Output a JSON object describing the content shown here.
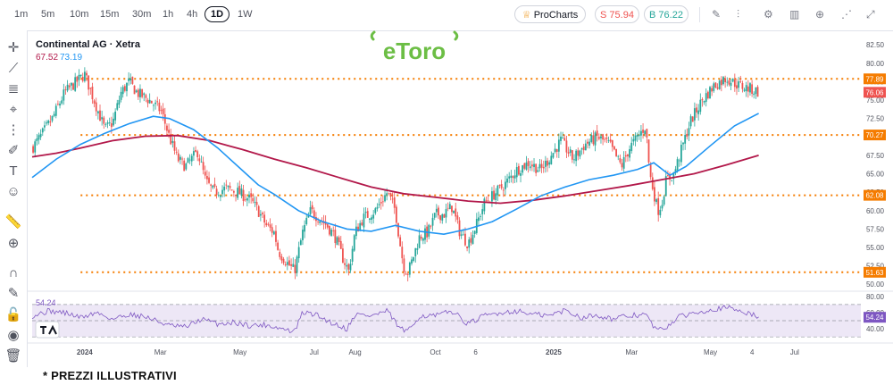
{
  "timeframes": [
    "1m",
    "5m",
    "10m",
    "15m",
    "30m",
    "1h",
    "4h",
    "1D",
    "1W"
  ],
  "active_timeframe": "1D",
  "procharts_label": "ProCharts",
  "sell_label": "S 75.94",
  "buy_label": "B 76.22",
  "toolbar_icons": [
    "pencil-icon",
    "indicators-icon",
    "settings-icon",
    "bars-icon",
    "add-icon",
    "share-icon",
    "fullscreen-icon"
  ],
  "left_tools": [
    "crosshair-icon",
    "trendline-icon",
    "fib-icon",
    "pattern-icon",
    "measure-icon",
    "brush-icon",
    "text-icon",
    "emoji-icon",
    "ruler-icon",
    "zoom-icon",
    "magnet-icon",
    "lock-draw-icon",
    "lock-icon",
    "eye-icon",
    "trash-icon"
  ],
  "brand_logo": "eToro",
  "colors": {
    "up": "#26a69a",
    "down": "#ef5350",
    "sma_short": "#2196f3",
    "sma_long": "#b2184a",
    "level": "#f57c00",
    "rsi": "#7e57c2",
    "brand": "#6cbe45"
  },
  "footer_note": "* PREZZI ILLUSTRATIVI",
  "chart_data": [
    {
      "type": "candlestick",
      "title": "Continental AG · Xetra",
      "legend_values": [
        "67.52",
        "73.19"
      ],
      "legend_colors": [
        "#b2184a",
        "#2196f3"
      ],
      "xticks": [
        {
          "label": "2024",
          "t": 0.068,
          "bold": true
        },
        {
          "label": "Mar",
          "t": 0.166
        },
        {
          "label": "May",
          "t": 0.269
        },
        {
          "label": "Jul",
          "t": 0.365
        },
        {
          "label": "Aug",
          "t": 0.418
        },
        {
          "label": "Oct",
          "t": 0.522
        },
        {
          "label": "6",
          "t": 0.574
        },
        {
          "label": "2025",
          "t": 0.675,
          "bold": true
        },
        {
          "label": "Mar",
          "t": 0.776
        },
        {
          "label": "May",
          "t": 0.878
        },
        {
          "label": "4",
          "t": 0.932
        },
        {
          "label": "Jul",
          "t": 0.987
        }
      ],
      "yticks": [
        50,
        52.5,
        55,
        57.5,
        60,
        62.5,
        65,
        67.5,
        70,
        72.5,
        75,
        77.5,
        80,
        82.5
      ],
      "ylim": [
        49.3,
        83.5
      ],
      "x_end": 1.045,
      "price_levels": [
        {
          "value": 77.89,
          "label": "77.89",
          "color": "#f57c00"
        },
        {
          "value": 70.27,
          "label": "70.27",
          "color": "#f57c00"
        },
        {
          "value": 62.08,
          "label": "62.08",
          "color": "#f57c00"
        },
        {
          "value": 51.63,
          "label": "51.63",
          "color": "#f57c00"
        }
      ],
      "last_price": {
        "value": 76.06,
        "label": "76.06",
        "color": "#ef5350"
      },
      "close_path": [
        [
          0,
          68.5
        ],
        [
          0.01,
          70
        ],
        [
          0.025,
          72.5
        ],
        [
          0.04,
          76
        ],
        [
          0.055,
          77.5
        ],
        [
          0.065,
          78.5
        ],
        [
          0.08,
          74
        ],
        [
          0.09,
          71
        ],
        [
          0.1,
          72
        ],
        [
          0.11,
          76
        ],
        [
          0.12,
          77.5
        ],
        [
          0.13,
          76
        ],
        [
          0.145,
          75
        ],
        [
          0.16,
          73.5
        ],
        [
          0.17,
          70
        ],
        [
          0.18,
          67
        ],
        [
          0.19,
          66
        ],
        [
          0.205,
          68
        ],
        [
          0.215,
          64
        ],
        [
          0.225,
          62.5
        ],
        [
          0.24,
          63
        ],
        [
          0.255,
          62.5
        ],
        [
          0.27,
          61.5
        ],
        [
          0.28,
          60
        ],
        [
          0.29,
          58
        ],
        [
          0.3,
          57
        ],
        [
          0.305,
          54.5
        ],
        [
          0.315,
          53
        ],
        [
          0.325,
          51.8
        ],
        [
          0.335,
          57
        ],
        [
          0.345,
          60
        ],
        [
          0.355,
          59
        ],
        [
          0.365,
          58
        ],
        [
          0.375,
          56.5
        ],
        [
          0.385,
          53.5
        ],
        [
          0.392,
          51.8
        ],
        [
          0.4,
          57
        ],
        [
          0.41,
          59
        ],
        [
          0.425,
          60
        ],
        [
          0.44,
          62.5
        ],
        [
          0.45,
          60
        ],
        [
          0.455,
          56
        ],
        [
          0.46,
          52.5
        ],
        [
          0.465,
          51.5
        ],
        [
          0.47,
          53
        ],
        [
          0.48,
          56.5
        ],
        [
          0.49,
          57
        ],
        [
          0.5,
          59.5
        ],
        [
          0.51,
          59.5
        ],
        [
          0.52,
          60.5
        ],
        [
          0.53,
          57
        ],
        [
          0.54,
          55.5
        ],
        [
          0.55,
          58
        ],
        [
          0.56,
          61
        ],
        [
          0.57,
          62
        ],
        [
          0.585,
          63.5
        ],
        [
          0.6,
          65.5
        ],
        [
          0.615,
          66.5
        ],
        [
          0.63,
          65.5
        ],
        [
          0.64,
          67
        ],
        [
          0.655,
          69.5
        ],
        [
          0.67,
          67
        ],
        [
          0.685,
          69
        ],
        [
          0.7,
          70
        ],
        [
          0.715,
          69
        ],
        [
          0.73,
          66
        ],
        [
          0.74,
          68.5
        ],
        [
          0.75,
          70
        ],
        [
          0.76,
          71.5
        ],
        [
          0.765,
          65
        ],
        [
          0.77,
          62.5
        ],
        [
          0.775,
          60
        ],
        [
          0.78,
          61
        ],
        [
          0.785,
          64
        ],
        [
          0.795,
          65
        ],
        [
          0.805,
          68.5
        ],
        [
          0.815,
          72
        ],
        [
          0.83,
          75
        ],
        [
          0.845,
          77
        ],
        [
          0.86,
          78
        ],
        [
          0.875,
          77
        ],
        [
          0.89,
          76.5
        ],
        [
          0.9,
          76.1
        ]
      ],
      "sma_short_path": [
        [
          0,
          64.5
        ],
        [
          0.03,
          67
        ],
        [
          0.06,
          69
        ],
        [
          0.09,
          70.5
        ],
        [
          0.12,
          71.8
        ],
        [
          0.15,
          72.8
        ],
        [
          0.17,
          72.5
        ],
        [
          0.2,
          71
        ],
        [
          0.23,
          68.5
        ],
        [
          0.26,
          65.5
        ],
        [
          0.28,
          63.5
        ],
        [
          0.3,
          62.2
        ],
        [
          0.33,
          60
        ],
        [
          0.36,
          58.5
        ],
        [
          0.39,
          57.5
        ],
        [
          0.42,
          57.2
        ],
        [
          0.45,
          58
        ],
        [
          0.48,
          57.2
        ],
        [
          0.51,
          56.8
        ],
        [
          0.54,
          57.5
        ],
        [
          0.57,
          58.5
        ],
        [
          0.6,
          60.2
        ],
        [
          0.63,
          62
        ],
        [
          0.66,
          63.2
        ],
        [
          0.69,
          64.2
        ],
        [
          0.72,
          64.8
        ],
        [
          0.75,
          65.6
        ],
        [
          0.77,
          66.5
        ],
        [
          0.79,
          64.8
        ],
        [
          0.81,
          66
        ],
        [
          0.84,
          68.8
        ],
        [
          0.87,
          71.5
        ],
        [
          0.9,
          73.2
        ]
      ],
      "sma_long_path": [
        [
          0,
          67.3
        ],
        [
          0.03,
          67.8
        ],
        [
          0.06,
          68.5
        ],
        [
          0.1,
          69.5
        ],
        [
          0.14,
          70.1
        ],
        [
          0.18,
          70.2
        ],
        [
          0.22,
          69.5
        ],
        [
          0.26,
          68.3
        ],
        [
          0.3,
          67
        ],
        [
          0.34,
          65.8
        ],
        [
          0.38,
          64.5
        ],
        [
          0.42,
          63.2
        ],
        [
          0.46,
          62.3
        ],
        [
          0.5,
          61.8
        ],
        [
          0.54,
          61.3
        ],
        [
          0.58,
          61
        ],
        [
          0.62,
          61.4
        ],
        [
          0.66,
          62
        ],
        [
          0.7,
          62.7
        ],
        [
          0.74,
          63.4
        ],
        [
          0.78,
          64.2
        ],
        [
          0.82,
          65
        ],
        [
          0.86,
          66.2
        ],
        [
          0.9,
          67.5
        ]
      ]
    },
    {
      "type": "line",
      "name": "RSI",
      "last_value": 54.24,
      "last_label": "54.24",
      "ylim": [
        28,
        82
      ],
      "yticks": [
        40,
        60,
        80
      ],
      "band": [
        30,
        70
      ],
      "mid": 50,
      "rsi_path": [
        [
          0,
          56
        ],
        [
          0.02,
          62
        ],
        [
          0.04,
          60
        ],
        [
          0.06,
          54
        ],
        [
          0.08,
          60
        ],
        [
          0.1,
          52
        ],
        [
          0.12,
          58
        ],
        [
          0.14,
          55
        ],
        [
          0.17,
          44
        ],
        [
          0.19,
          42
        ],
        [
          0.21,
          52
        ],
        [
          0.23,
          46
        ],
        [
          0.25,
          48
        ],
        [
          0.27,
          44
        ],
        [
          0.29,
          45
        ],
        [
          0.31,
          40
        ],
        [
          0.325,
          36
        ],
        [
          0.335,
          60
        ],
        [
          0.35,
          58
        ],
        [
          0.37,
          48
        ],
        [
          0.39,
          40
        ],
        [
          0.4,
          58
        ],
        [
          0.42,
          56
        ],
        [
          0.44,
          62
        ],
        [
          0.455,
          41
        ],
        [
          0.465,
          36
        ],
        [
          0.48,
          56
        ],
        [
          0.5,
          56
        ],
        [
          0.52,
          62
        ],
        [
          0.54,
          46
        ],
        [
          0.56,
          56
        ],
        [
          0.58,
          60
        ],
        [
          0.6,
          62
        ],
        [
          0.62,
          58
        ],
        [
          0.64,
          56
        ],
        [
          0.66,
          63
        ],
        [
          0.68,
          54
        ],
        [
          0.7,
          57
        ],
        [
          0.72,
          52
        ],
        [
          0.74,
          56
        ],
        [
          0.76,
          58
        ],
        [
          0.77,
          42
        ],
        [
          0.78,
          38
        ],
        [
          0.8,
          54
        ],
        [
          0.82,
          60
        ],
        [
          0.84,
          64
        ],
        [
          0.86,
          66
        ],
        [
          0.88,
          62
        ],
        [
          0.9,
          54.2
        ]
      ]
    }
  ]
}
